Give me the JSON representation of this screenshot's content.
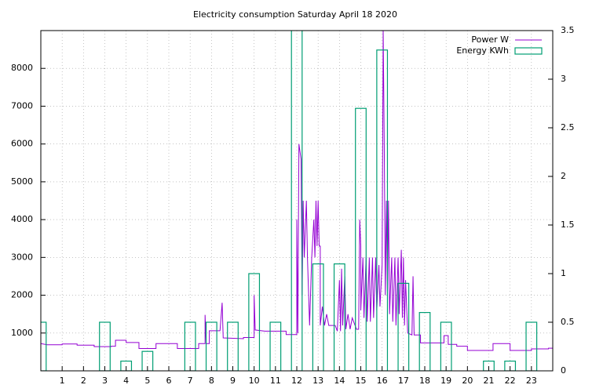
{
  "chart_data": {
    "type": "line-bar",
    "title": "Electricity consumption Saturday April 18 2020",
    "xlim": [
      0,
      24
    ],
    "xticks": [
      1,
      2,
      3,
      4,
      5,
      6,
      7,
      8,
      9,
      10,
      11,
      12,
      13,
      14,
      15,
      16,
      17,
      18,
      19,
      20,
      21,
      22,
      23
    ],
    "ylim": [
      0,
      9000
    ],
    "yticks": [
      1000,
      2000,
      3000,
      4000,
      5000,
      6000,
      7000,
      8000
    ],
    "y2lim": [
      0,
      3.5
    ],
    "y2ticks": [
      0,
      0.5,
      1,
      1.5,
      2,
      2.5,
      3,
      3.5
    ],
    "grid": true,
    "legend": "top-right",
    "series": [
      {
        "name": "Power W",
        "color": "#9400d3",
        "x": [
          0,
          0.3,
          1,
          1,
          1.7,
          1.7,
          2.5,
          2.5,
          3.3,
          3.3,
          3.5,
          3.5,
          4,
          4,
          4.6,
          4.6,
          5.4,
          5.4,
          6.4,
          6.4,
          7.4,
          7.4,
          7.7,
          7.7,
          7.75,
          7.9,
          7.9,
          8.4,
          8.5,
          8.55,
          9.5,
          9.5,
          10,
          10,
          10.05,
          10.5,
          11.5,
          11.5,
          12,
          12,
          12.05,
          12.1,
          12.2,
          12.25,
          12.3,
          12.35,
          12.45,
          12.5,
          12.6,
          12.7,
          12.8,
          12.85,
          12.9,
          12.95,
          13,
          13.05,
          13.1,
          13.1,
          13.2,
          13.3,
          13.4,
          13.5,
          13.8,
          13.9,
          14,
          14.05,
          14.1,
          14.15,
          14.25,
          14.3,
          14.4,
          14.5,
          14.6,
          14.8,
          14.9,
          14.95,
          15,
          15,
          15.1,
          15.15,
          15.25,
          15.3,
          15.4,
          15.45,
          15.55,
          15.6,
          15.7,
          15.75,
          15.85,
          15.9,
          16,
          16.05,
          16.1,
          16.15,
          16.2,
          16.25,
          16.3,
          16.35,
          16.45,
          16.5,
          16.6,
          16.65,
          16.75,
          16.8,
          16.9,
          16.95,
          17,
          17.05,
          17.1,
          17.2,
          17.4,
          17.45,
          17.5,
          17.8,
          17.8,
          18.9,
          18.9,
          19.1,
          19.1,
          19.5,
          19.5,
          20,
          20,
          21.2,
          21.2,
          22,
          22,
          23,
          23,
          23.8,
          23.8,
          24
        ],
        "values": [
          720,
          690,
          690,
          710,
          710,
          680,
          680,
          640,
          640,
          650,
          650,
          810,
          810,
          750,
          750,
          590,
          590,
          720,
          720,
          590,
          590,
          720,
          720,
          1480,
          720,
          720,
          1060,
          1060,
          1800,
          870,
          850,
          880,
          880,
          2000,
          1080,
          1050,
          1050,
          960,
          960,
          4000,
          1000,
          6000,
          5600,
          2000,
          4500,
          3000,
          4500,
          3000,
          1200,
          3000,
          4000,
          3000,
          4500,
          3300,
          4500,
          3300,
          3300,
          1200,
          1700,
          1200,
          1500,
          1200,
          1200,
          1050,
          2400,
          1050,
          2700,
          1200,
          2500,
          1100,
          1500,
          1100,
          1400,
          1100,
          1100,
          4000,
          3300,
          1600,
          3000,
          1400,
          3000,
          1300,
          3000,
          1300,
          3000,
          1400,
          3000,
          1600,
          2800,
          1700,
          2800,
          9000,
          6000,
          2000,
          4500,
          2000,
          4500,
          1500,
          3000,
          1300,
          3000,
          1200,
          3000,
          1500,
          3200,
          1400,
          3000,
          1200,
          2400,
          1000,
          950,
          2500,
          950,
          950,
          740,
          740,
          930,
          930,
          700,
          700,
          650,
          650,
          540,
          540,
          720,
          720,
          540,
          540,
          580,
          580,
          600,
          600
        ]
      },
      {
        "name": "Energy KWh",
        "color": "#009e73",
        "axis": "y2",
        "x": [
          0,
          1,
          2,
          3,
          4,
          5,
          6,
          7,
          8,
          9,
          10,
          11,
          12,
          13,
          14,
          15,
          16,
          17,
          18,
          19,
          20,
          21,
          22,
          23
        ],
        "values": [
          0.5,
          0,
          0,
          0.5,
          0.1,
          0.2,
          0,
          0.5,
          0.5,
          0.5,
          1.0,
          0.5,
          3.6,
          1.1,
          1.1,
          2.7,
          3.3,
          0.9,
          0.6,
          0.5,
          0,
          0.1,
          0.1,
          0.5
        ]
      }
    ]
  }
}
